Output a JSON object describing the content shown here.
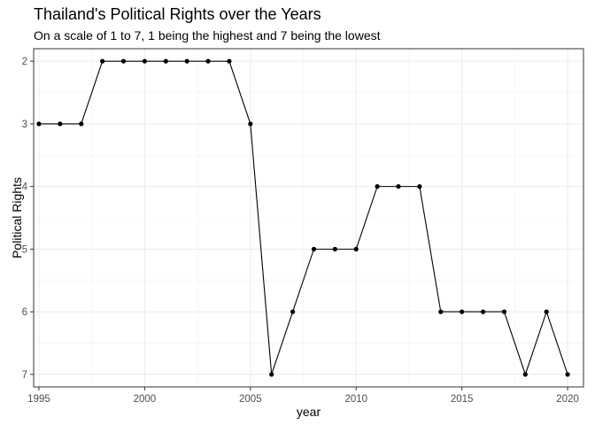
{
  "chart_data": {
    "type": "line",
    "title": "Thailand's Political Rights over the Years",
    "subtitle": "On a scale of 1 to 7, 1 being the highest and 7 being the lowest",
    "xlabel": "year",
    "ylabel": "Political Rights",
    "y_reversed": true,
    "xlim": [
      1994.75,
      2020.75
    ],
    "ylim": [
      7.2,
      1.8
    ],
    "x_ticks": [
      1995,
      2000,
      2005,
      2010,
      2015,
      2020
    ],
    "y_ticks": [
      2,
      3,
      4,
      5,
      6,
      7
    ],
    "x_minor": [
      1997.5,
      2002.5,
      2007.5,
      2012.5,
      2017.5
    ],
    "y_minor": [
      2.5,
      3.5,
      4.5,
      5.5,
      6.5
    ],
    "grid": true,
    "legend": "none",
    "line_color": "#000000",
    "point_color": "#000000",
    "grid_color": "#ebebeb",
    "series": [
      {
        "x": [
          1995,
          1996,
          1997,
          1998,
          1999,
          2000,
          2001,
          2002,
          2003,
          2004,
          2005,
          2006,
          2007,
          2008,
          2009,
          2010,
          2011,
          2012,
          2013,
          2014,
          2015,
          2016,
          2017,
          2018,
          2019,
          2020
        ],
        "y": [
          3,
          3,
          3,
          2,
          2,
          2,
          2,
          2,
          2,
          2,
          3,
          7,
          6,
          5,
          5,
          5,
          4,
          4,
          4,
          6,
          6,
          6,
          6,
          7,
          6,
          7
        ]
      }
    ]
  }
}
